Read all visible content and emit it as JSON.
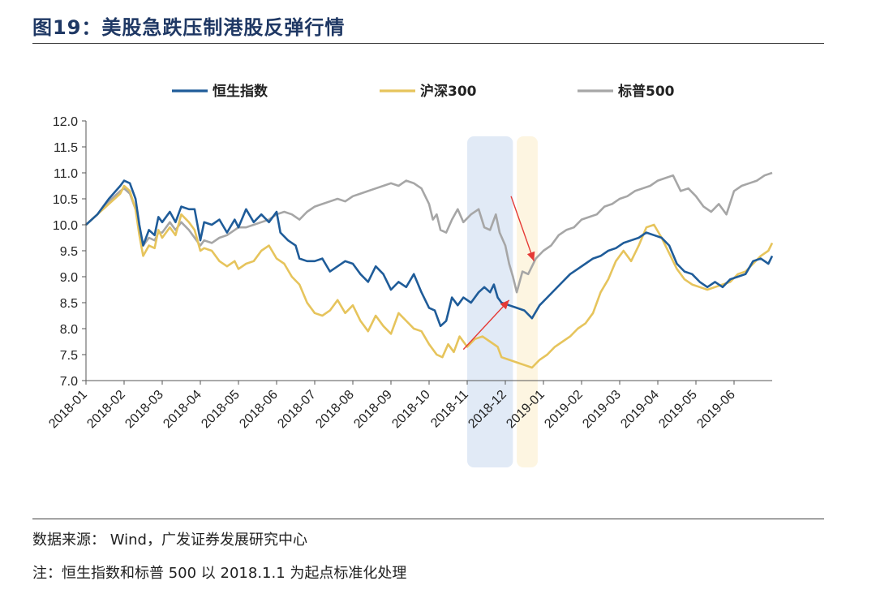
{
  "header": {
    "title": "图19：美股急跌压制港股反弹行情"
  },
  "footer": {
    "source": "数据来源：  Wind，广发证券发展研究中心",
    "note": "注：恒生指数和标普 500 以 2018.1.1 为起点标准化处理"
  },
  "chart_data": {
    "type": "line",
    "title": "",
    "xlabel": "",
    "ylabel": "",
    "ylim": [
      7.0,
      12.0
    ],
    "yticks": [
      "12.0",
      "11.5",
      "11.0",
      "10.5",
      "10.0",
      "9.5",
      "9.0",
      "8.5",
      "8.0",
      "7.5",
      "7.0"
    ],
    "xtick_labels": [
      "2018-01",
      "2018-02",
      "2018-03",
      "2018-04",
      "2018-05",
      "2018-06",
      "2018-07",
      "2018-08",
      "2018-09",
      "2018-10",
      "2018-11",
      "2018-12",
      "2019-01",
      "2019-02",
      "2019-03",
      "2019-04",
      "2019-05",
      "2019-06"
    ],
    "x_range_months": [
      0,
      18
    ],
    "legend_position": "top",
    "series": [
      {
        "name": "恒生指数",
        "color": "#1f5c99",
        "points": [
          [
            0,
            10.0
          ],
          [
            0.3,
            10.2
          ],
          [
            0.6,
            10.5
          ],
          [
            0.9,
            10.75
          ],
          [
            1.0,
            10.85
          ],
          [
            1.15,
            10.8
          ],
          [
            1.3,
            10.5
          ],
          [
            1.4,
            10.0
          ],
          [
            1.5,
            9.6
          ],
          [
            1.65,
            9.9
          ],
          [
            1.8,
            9.8
          ],
          [
            1.9,
            10.15
          ],
          [
            2.0,
            10.05
          ],
          [
            2.2,
            10.25
          ],
          [
            2.35,
            10.05
          ],
          [
            2.5,
            10.35
          ],
          [
            2.7,
            10.3
          ],
          [
            2.85,
            10.3
          ],
          [
            3.0,
            9.7
          ],
          [
            3.1,
            10.05
          ],
          [
            3.3,
            10.0
          ],
          [
            3.5,
            10.1
          ],
          [
            3.7,
            9.85
          ],
          [
            3.9,
            10.1
          ],
          [
            4.0,
            9.95
          ],
          [
            4.2,
            10.3
          ],
          [
            4.4,
            10.05
          ],
          [
            4.6,
            10.2
          ],
          [
            4.8,
            10.05
          ],
          [
            5.0,
            10.25
          ],
          [
            5.1,
            9.85
          ],
          [
            5.3,
            9.7
          ],
          [
            5.5,
            9.6
          ],
          [
            5.6,
            9.35
          ],
          [
            5.8,
            9.3
          ],
          [
            6.0,
            9.3
          ],
          [
            6.2,
            9.35
          ],
          [
            6.4,
            9.1
          ],
          [
            6.6,
            9.2
          ],
          [
            6.8,
            9.3
          ],
          [
            7.0,
            9.25
          ],
          [
            7.2,
            9.05
          ],
          [
            7.4,
            8.9
          ],
          [
            7.6,
            9.2
          ],
          [
            7.8,
            9.05
          ],
          [
            8.0,
            8.75
          ],
          [
            8.2,
            8.9
          ],
          [
            8.4,
            8.8
          ],
          [
            8.6,
            9.05
          ],
          [
            8.8,
            8.7
          ],
          [
            9.0,
            8.4
          ],
          [
            9.15,
            8.35
          ],
          [
            9.3,
            8.05
          ],
          [
            9.45,
            8.15
          ],
          [
            9.6,
            8.6
          ],
          [
            9.75,
            8.45
          ],
          [
            9.9,
            8.6
          ],
          [
            10.1,
            8.5
          ],
          [
            10.3,
            8.7
          ],
          [
            10.45,
            8.8
          ],
          [
            10.6,
            8.7
          ],
          [
            10.7,
            8.85
          ],
          [
            10.8,
            8.6
          ],
          [
            10.9,
            8.5
          ],
          [
            11.1,
            8.45
          ],
          [
            11.3,
            8.4
          ],
          [
            11.5,
            8.35
          ],
          [
            11.7,
            8.2
          ],
          [
            11.9,
            8.45
          ],
          [
            12.1,
            8.6
          ],
          [
            12.3,
            8.75
          ],
          [
            12.5,
            8.9
          ],
          [
            12.7,
            9.05
          ],
          [
            12.9,
            9.15
          ],
          [
            13.1,
            9.25
          ],
          [
            13.3,
            9.35
          ],
          [
            13.5,
            9.4
          ],
          [
            13.7,
            9.5
          ],
          [
            13.9,
            9.55
          ],
          [
            14.1,
            9.65
          ],
          [
            14.3,
            9.7
          ],
          [
            14.5,
            9.75
          ],
          [
            14.7,
            9.85
          ],
          [
            14.9,
            9.8
          ],
          [
            15.1,
            9.75
          ],
          [
            15.3,
            9.6
          ],
          [
            15.5,
            9.25
          ],
          [
            15.7,
            9.1
          ],
          [
            15.9,
            9.05
          ],
          [
            16.1,
            8.9
          ],
          [
            16.3,
            8.8
          ],
          [
            16.5,
            8.9
          ],
          [
            16.7,
            8.8
          ],
          [
            16.9,
            8.95
          ],
          [
            17.1,
            9.0
          ],
          [
            17.3,
            9.05
          ],
          [
            17.5,
            9.3
          ],
          [
            17.7,
            9.35
          ],
          [
            17.9,
            9.25
          ],
          [
            18.0,
            9.4
          ]
        ]
      },
      {
        "name": "沪深300",
        "color": "#e6c45c",
        "points": [
          [
            0,
            10.0
          ],
          [
            0.3,
            10.2
          ],
          [
            0.6,
            10.4
          ],
          [
            0.9,
            10.6
          ],
          [
            1.0,
            10.75
          ],
          [
            1.15,
            10.65
          ],
          [
            1.3,
            10.3
          ],
          [
            1.4,
            9.8
          ],
          [
            1.5,
            9.4
          ],
          [
            1.65,
            9.6
          ],
          [
            1.8,
            9.55
          ],
          [
            1.9,
            9.9
          ],
          [
            2.0,
            9.75
          ],
          [
            2.2,
            9.95
          ],
          [
            2.35,
            9.8
          ],
          [
            2.5,
            10.2
          ],
          [
            2.7,
            10.05
          ],
          [
            2.85,
            9.9
          ],
          [
            3.0,
            9.5
          ],
          [
            3.1,
            9.55
          ],
          [
            3.3,
            9.5
          ],
          [
            3.5,
            9.3
          ],
          [
            3.7,
            9.2
          ],
          [
            3.9,
            9.3
          ],
          [
            4.0,
            9.15
          ],
          [
            4.2,
            9.25
          ],
          [
            4.4,
            9.3
          ],
          [
            4.6,
            9.5
          ],
          [
            4.8,
            9.6
          ],
          [
            5.0,
            9.35
          ],
          [
            5.2,
            9.25
          ],
          [
            5.4,
            9.0
          ],
          [
            5.6,
            8.85
          ],
          [
            5.8,
            8.5
          ],
          [
            6.0,
            8.3
          ],
          [
            6.2,
            8.25
          ],
          [
            6.4,
            8.35
          ],
          [
            6.6,
            8.55
          ],
          [
            6.8,
            8.3
          ],
          [
            7.0,
            8.45
          ],
          [
            7.2,
            8.15
          ],
          [
            7.4,
            7.95
          ],
          [
            7.6,
            8.25
          ],
          [
            7.8,
            8.05
          ],
          [
            8.0,
            7.9
          ],
          [
            8.2,
            8.3
          ],
          [
            8.4,
            8.15
          ],
          [
            8.6,
            8.0
          ],
          [
            8.8,
            7.95
          ],
          [
            9.0,
            7.7
          ],
          [
            9.2,
            7.5
          ],
          [
            9.35,
            7.45
          ],
          [
            9.5,
            7.7
          ],
          [
            9.65,
            7.55
          ],
          [
            9.8,
            7.85
          ],
          [
            10.0,
            7.65
          ],
          [
            10.2,
            7.8
          ],
          [
            10.4,
            7.85
          ],
          [
            10.6,
            7.75
          ],
          [
            10.8,
            7.65
          ],
          [
            10.9,
            7.45
          ],
          [
            11.1,
            7.4
          ],
          [
            11.3,
            7.35
          ],
          [
            11.5,
            7.3
          ],
          [
            11.7,
            7.25
          ],
          [
            11.9,
            7.4
          ],
          [
            12.1,
            7.5
          ],
          [
            12.3,
            7.65
          ],
          [
            12.5,
            7.75
          ],
          [
            12.7,
            7.85
          ],
          [
            12.9,
            8.0
          ],
          [
            13.1,
            8.1
          ],
          [
            13.3,
            8.3
          ],
          [
            13.5,
            8.7
          ],
          [
            13.7,
            8.95
          ],
          [
            13.9,
            9.3
          ],
          [
            14.1,
            9.5
          ],
          [
            14.3,
            9.3
          ],
          [
            14.5,
            9.6
          ],
          [
            14.7,
            9.95
          ],
          [
            14.9,
            10.0
          ],
          [
            15.1,
            9.75
          ],
          [
            15.3,
            9.45
          ],
          [
            15.5,
            9.15
          ],
          [
            15.7,
            8.95
          ],
          [
            15.9,
            8.85
          ],
          [
            16.1,
            8.8
          ],
          [
            16.3,
            8.75
          ],
          [
            16.5,
            8.8
          ],
          [
            16.7,
            8.85
          ],
          [
            16.9,
            8.9
          ],
          [
            17.1,
            9.05
          ],
          [
            17.3,
            9.1
          ],
          [
            17.5,
            9.25
          ],
          [
            17.7,
            9.4
          ],
          [
            17.9,
            9.5
          ],
          [
            18.0,
            9.65
          ]
        ]
      },
      {
        "name": "标普500",
        "color": "#a6a6a6",
        "points": [
          [
            0,
            10.0
          ],
          [
            0.3,
            10.2
          ],
          [
            0.6,
            10.45
          ],
          [
            0.9,
            10.65
          ],
          [
            1.0,
            10.7
          ],
          [
            1.15,
            10.6
          ],
          [
            1.3,
            10.3
          ],
          [
            1.4,
            9.9
          ],
          [
            1.5,
            9.6
          ],
          [
            1.65,
            9.75
          ],
          [
            1.8,
            9.7
          ],
          [
            1.9,
            9.85
          ],
          [
            2.0,
            9.85
          ],
          [
            2.2,
            10.05
          ],
          [
            2.35,
            9.9
          ],
          [
            2.5,
            10.05
          ],
          [
            2.7,
            9.9
          ],
          [
            2.85,
            9.75
          ],
          [
            3.0,
            9.6
          ],
          [
            3.1,
            9.7
          ],
          [
            3.3,
            9.65
          ],
          [
            3.5,
            9.75
          ],
          [
            3.7,
            9.8
          ],
          [
            3.9,
            9.9
          ],
          [
            4.0,
            9.95
          ],
          [
            4.2,
            9.95
          ],
          [
            4.4,
            10.0
          ],
          [
            4.6,
            10.05
          ],
          [
            4.8,
            10.1
          ],
          [
            5.0,
            10.2
          ],
          [
            5.2,
            10.25
          ],
          [
            5.4,
            10.2
          ],
          [
            5.6,
            10.1
          ],
          [
            5.8,
            10.25
          ],
          [
            6.0,
            10.35
          ],
          [
            6.2,
            10.4
          ],
          [
            6.4,
            10.45
          ],
          [
            6.6,
            10.5
          ],
          [
            6.8,
            10.45
          ],
          [
            7.0,
            10.55
          ],
          [
            7.2,
            10.6
          ],
          [
            7.4,
            10.65
          ],
          [
            7.6,
            10.7
          ],
          [
            7.8,
            10.75
          ],
          [
            8.0,
            10.8
          ],
          [
            8.2,
            10.75
          ],
          [
            8.4,
            10.85
          ],
          [
            8.6,
            10.8
          ],
          [
            8.8,
            10.7
          ],
          [
            9.0,
            10.4
          ],
          [
            9.1,
            10.1
          ],
          [
            9.2,
            10.2
          ],
          [
            9.3,
            9.9
          ],
          [
            9.45,
            9.85
          ],
          [
            9.6,
            10.1
          ],
          [
            9.75,
            10.3
          ],
          [
            9.9,
            10.05
          ],
          [
            10.1,
            10.2
          ],
          [
            10.3,
            10.3
          ],
          [
            10.45,
            9.95
          ],
          [
            10.6,
            9.9
          ],
          [
            10.75,
            10.2
          ],
          [
            10.85,
            9.85
          ],
          [
            11.0,
            9.6
          ],
          [
            11.1,
            9.25
          ],
          [
            11.2,
            9.0
          ],
          [
            11.3,
            8.7
          ],
          [
            11.45,
            9.1
          ],
          [
            11.6,
            9.05
          ],
          [
            11.8,
            9.35
          ],
          [
            12.0,
            9.5
          ],
          [
            12.2,
            9.6
          ],
          [
            12.4,
            9.8
          ],
          [
            12.6,
            9.9
          ],
          [
            12.8,
            9.95
          ],
          [
            13.0,
            10.1
          ],
          [
            13.2,
            10.15
          ],
          [
            13.4,
            10.2
          ],
          [
            13.6,
            10.35
          ],
          [
            13.8,
            10.4
          ],
          [
            14.0,
            10.5
          ],
          [
            14.2,
            10.55
          ],
          [
            14.4,
            10.65
          ],
          [
            14.6,
            10.7
          ],
          [
            14.8,
            10.75
          ],
          [
            15.0,
            10.85
          ],
          [
            15.2,
            10.9
          ],
          [
            15.4,
            10.95
          ],
          [
            15.6,
            10.65
          ],
          [
            15.8,
            10.7
          ],
          [
            16.0,
            10.55
          ],
          [
            16.2,
            10.35
          ],
          [
            16.4,
            10.25
          ],
          [
            16.6,
            10.4
          ],
          [
            16.8,
            10.2
          ],
          [
            17.0,
            10.65
          ],
          [
            17.2,
            10.75
          ],
          [
            17.4,
            10.8
          ],
          [
            17.6,
            10.85
          ],
          [
            17.8,
            10.95
          ],
          [
            18.0,
            11.0
          ]
        ]
      }
    ],
    "highlights": [
      {
        "name": "2018-11 to 2018-12 window",
        "x_start": 10.0,
        "x_end": 11.2,
        "color": "#dce6f5"
      },
      {
        "name": "late 2018-12 window",
        "x_start": 11.3,
        "x_end": 11.85,
        "color": "#fdf3dc"
      }
    ],
    "annotations": [
      {
        "name": "hsi-rebound-arrow",
        "color": "#e53935",
        "from": [
          9.9,
          7.6
        ],
        "to": [
          11.1,
          8.55
        ]
      },
      {
        "name": "sp500-drop-arrow",
        "color": "#e53935",
        "from": [
          11.15,
          10.55
        ],
        "to": [
          11.75,
          9.3
        ]
      }
    ]
  }
}
